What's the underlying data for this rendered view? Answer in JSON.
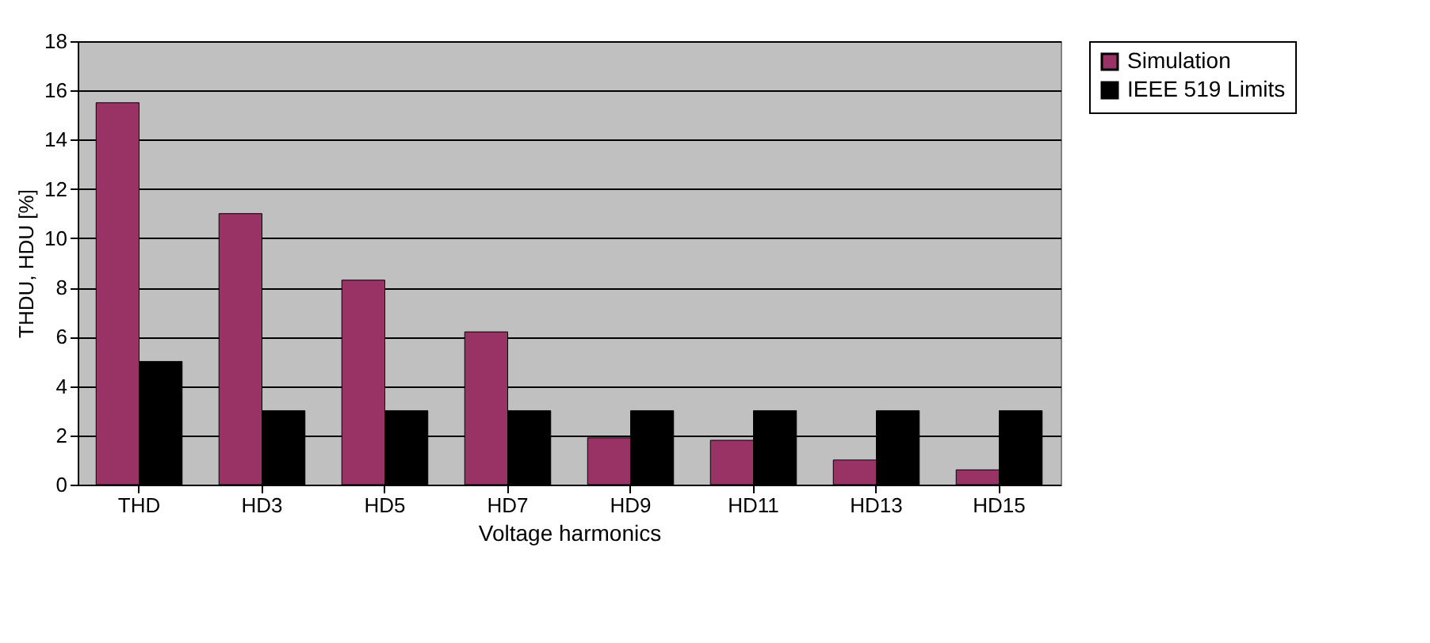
{
  "chart_data": {
    "type": "bar",
    "xlabel": "Voltage harmonics",
    "ylabel": "THDU, HDU [%]",
    "categories": [
      "THD",
      "HD3",
      "HD5",
      "HD7",
      "HD9",
      "HD11",
      "HD13",
      "HD15"
    ],
    "series": [
      {
        "name": "Simulation",
        "color": "#993366",
        "values": [
          15.5,
          11.0,
          8.3,
          6.2,
          1.9,
          1.8,
          1.0,
          0.6
        ]
      },
      {
        "name": "IEEE 519 Limits",
        "color": "#000000",
        "values": [
          5,
          3,
          3,
          3,
          3,
          3,
          3,
          3
        ]
      }
    ],
    "ylim": [
      0,
      18
    ],
    "yticks": [
      0,
      2,
      4,
      6,
      8,
      10,
      12,
      14,
      16,
      18
    ],
    "grid": "y",
    "legend": "right"
  }
}
